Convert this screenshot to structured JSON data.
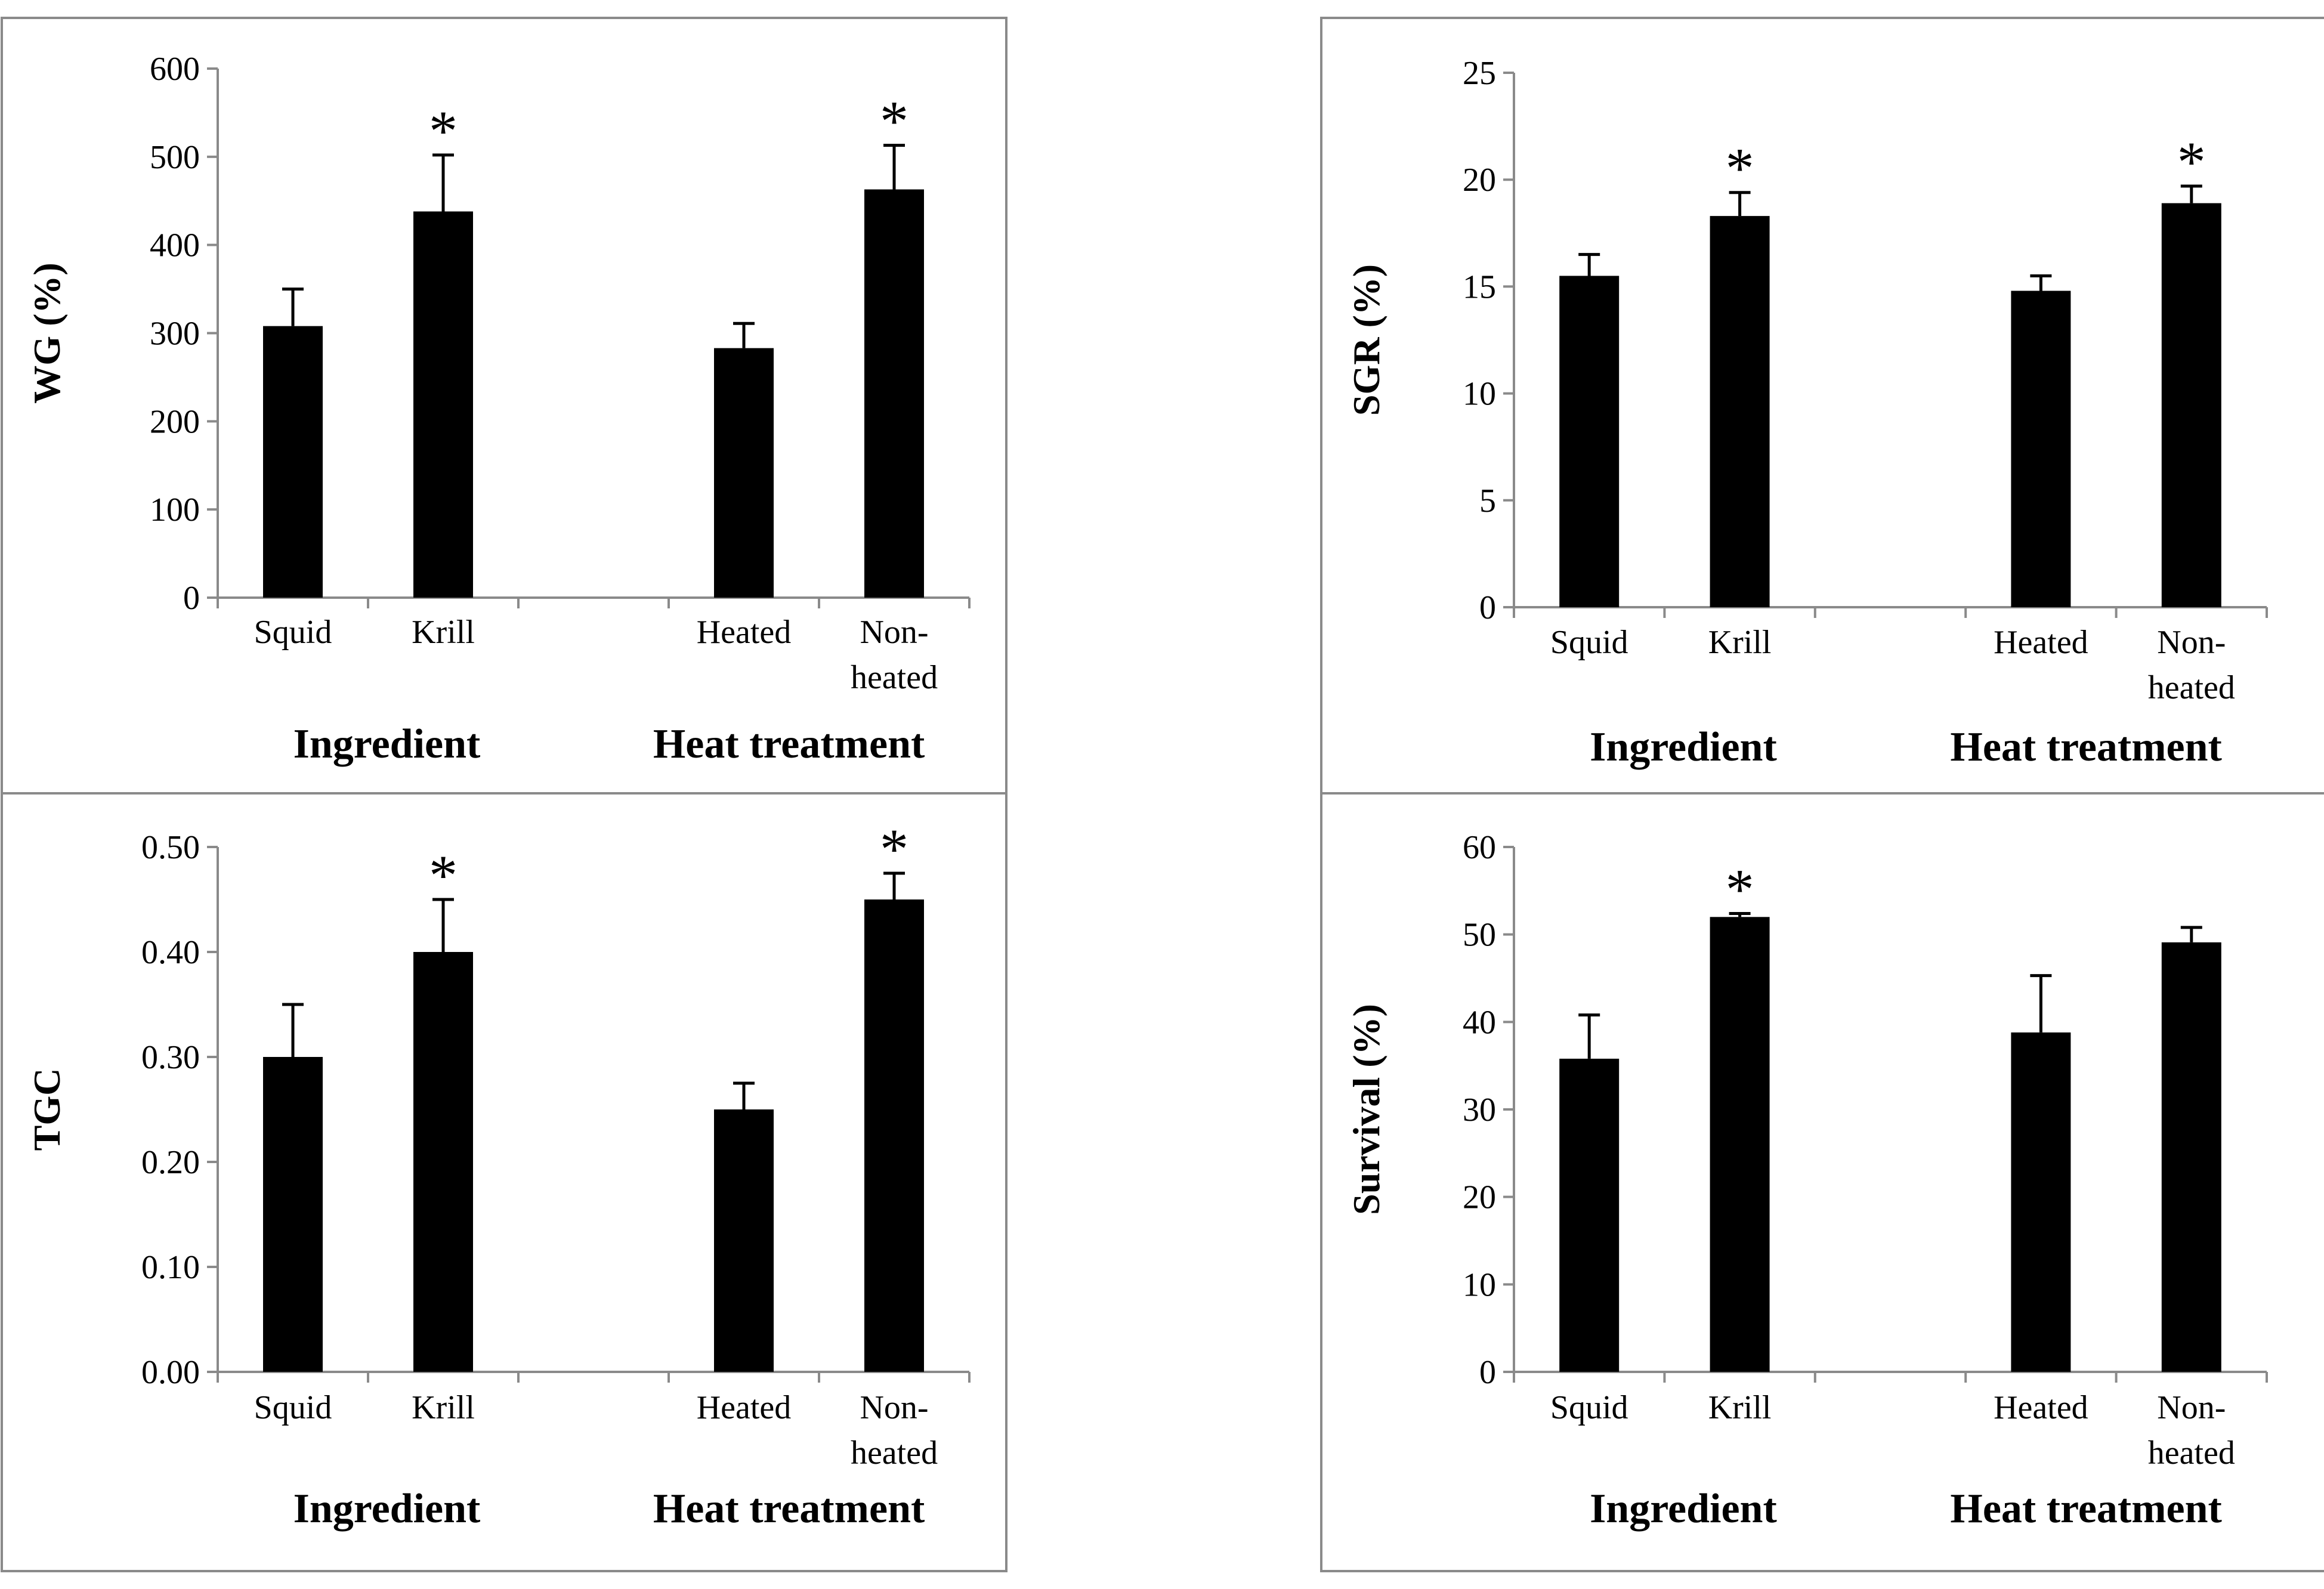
{
  "chart_data": [
    {
      "type": "bar",
      "ylabel": "WG (%)",
      "ylim": [
        0,
        600
      ],
      "yticks": [
        0,
        100,
        200,
        300,
        400,
        500,
        600
      ],
      "tick_labels": [
        "0",
        "100",
        "200",
        "300",
        "400",
        "500",
        "600"
      ],
      "categories": [
        "Squid",
        "Krill",
        "Heated",
        "Non-\nheated"
      ],
      "values": [
        308,
        438,
        283,
        463
      ],
      "errors": [
        42,
        64,
        28,
        50
      ],
      "significant": [
        "",
        "*",
        "",
        "*"
      ],
      "groups": [
        "Ingredient",
        "Heat treatment"
      ]
    },
    {
      "type": "bar",
      "ylabel": "SGR (%)",
      "ylim": [
        0,
        25
      ],
      "yticks": [
        0,
        5,
        10,
        15,
        20,
        25
      ],
      "tick_labels": [
        "0",
        "5",
        "10",
        "15",
        "20",
        "25"
      ],
      "categories": [
        "Squid",
        "Krill",
        "Heated",
        "Non-\nheated"
      ],
      "values": [
        15.5,
        18.3,
        14.8,
        18.9
      ],
      "errors": [
        1.0,
        1.1,
        0.7,
        0.8
      ],
      "significant": [
        "",
        "*",
        "",
        "*"
      ],
      "groups": [
        "Ingredient",
        "Heat treatment"
      ]
    },
    {
      "type": "bar",
      "ylabel": "TGC",
      "ylim": [
        0,
        0.5
      ],
      "yticks": [
        0,
        0.1,
        0.2,
        0.3,
        0.4,
        0.5
      ],
      "tick_labels": [
        "0.00",
        "0.10",
        "0.20",
        "0.30",
        "0.40",
        "0.50"
      ],
      "categories": [
        "Squid",
        "Krill",
        "Heated",
        "Non-\nheated"
      ],
      "values": [
        0.3,
        0.4,
        0.25,
        0.45
      ],
      "errors": [
        0.05,
        0.05,
        0.025,
        0.025
      ],
      "significant": [
        "",
        "*",
        "",
        "*"
      ],
      "groups": [
        "Ingredient",
        "Heat treatment"
      ]
    },
    {
      "type": "bar",
      "ylabel": "Survival (%)",
      "ylim": [
        0,
        60
      ],
      "yticks": [
        0,
        10,
        20,
        30,
        40,
        50,
        60
      ],
      "tick_labels": [
        "0",
        "10",
        "20",
        "30",
        "40",
        "50",
        "60"
      ],
      "categories": [
        "Squid",
        "Krill",
        "Heated",
        "Non-\nheated"
      ],
      "values": [
        35.8,
        52.0,
        38.8,
        49.1
      ],
      "errors": [
        5.0,
        0.4,
        6.5,
        1.7
      ],
      "significant": [
        "",
        "*",
        "",
        ""
      ],
      "groups": [
        "Ingredient",
        "Heat treatment"
      ]
    }
  ]
}
